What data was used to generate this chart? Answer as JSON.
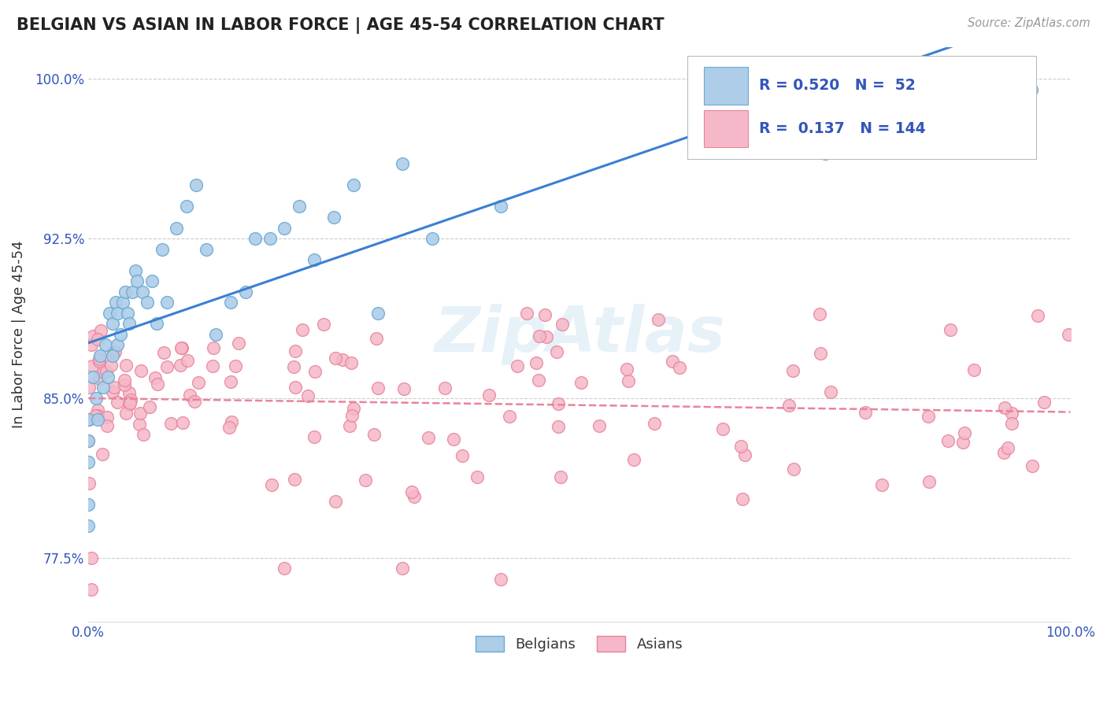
{
  "title": "BELGIAN VS ASIAN IN LABOR FORCE | AGE 45-54 CORRELATION CHART",
  "source_text": "Source: ZipAtlas.com",
  "ylabel": "In Labor Force | Age 45-54",
  "xlim": [
    0.0,
    1.0
  ],
  "ylim": [
    0.745,
    1.015
  ],
  "yticks": [
    0.775,
    0.85,
    0.925,
    1.0
  ],
  "ytick_labels": [
    "77.5%",
    "85.0%",
    "92.5%",
    "100.0%"
  ],
  "xticks": [
    0.0,
    1.0
  ],
  "xtick_labels": [
    "0.0%",
    "100.0%"
  ],
  "watermark": "ZipAtlas",
  "belgian_color": "#aecde8",
  "asian_color": "#f5b8c8",
  "belgian_edge": "#6aaad4",
  "asian_edge": "#e8849a",
  "trend_belgian": "#3a7fd4",
  "trend_asian": "#e8849a",
  "background": "#ffffff",
  "grid_color": "#cccccc",
  "belgian_R": 0.52,
  "belgian_N": 52,
  "asian_R": 0.137,
  "asian_N": 144,
  "legend_text_color": "#3355bb",
  "tick_color": "#3355bb",
  "title_color": "#222222",
  "source_color": "#999999"
}
